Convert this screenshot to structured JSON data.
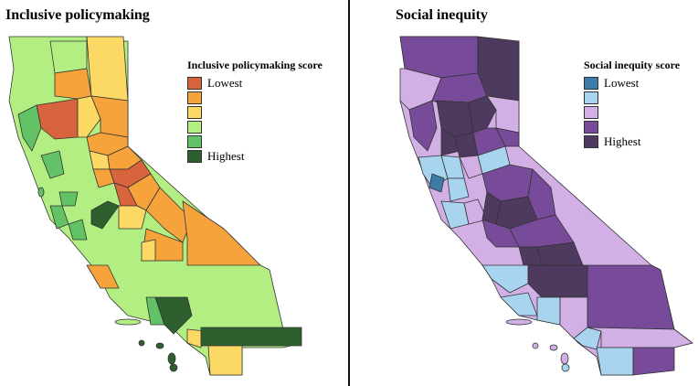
{
  "left_panel": {
    "title": "Inclusive policymaking",
    "legend": {
      "title": "Inclusive policymaking score",
      "items": [
        {
          "color": "#d7643c",
          "label": "Lowest"
        },
        {
          "color": "#f5a33a",
          "label": ""
        },
        {
          "color": "#fcd965",
          "label": ""
        },
        {
          "color": "#b3ee82",
          "label": ""
        },
        {
          "color": "#64c266",
          "label": ""
        },
        {
          "color": "#2e5f2f",
          "label": "Highest"
        }
      ]
    }
  },
  "right_panel": {
    "title": "Social inequity",
    "legend": {
      "title": "Social inequity score",
      "items": [
        {
          "color": "#3d7ca8",
          "label": "Lowest"
        },
        {
          "color": "#a9d4ef",
          "label": ""
        },
        {
          "color": "#d2b0e6",
          "label": ""
        },
        {
          "color": "#784a9a",
          "label": ""
        },
        {
          "color": "#4d3a5e",
          "label": "Highest"
        }
      ]
    }
  }
}
